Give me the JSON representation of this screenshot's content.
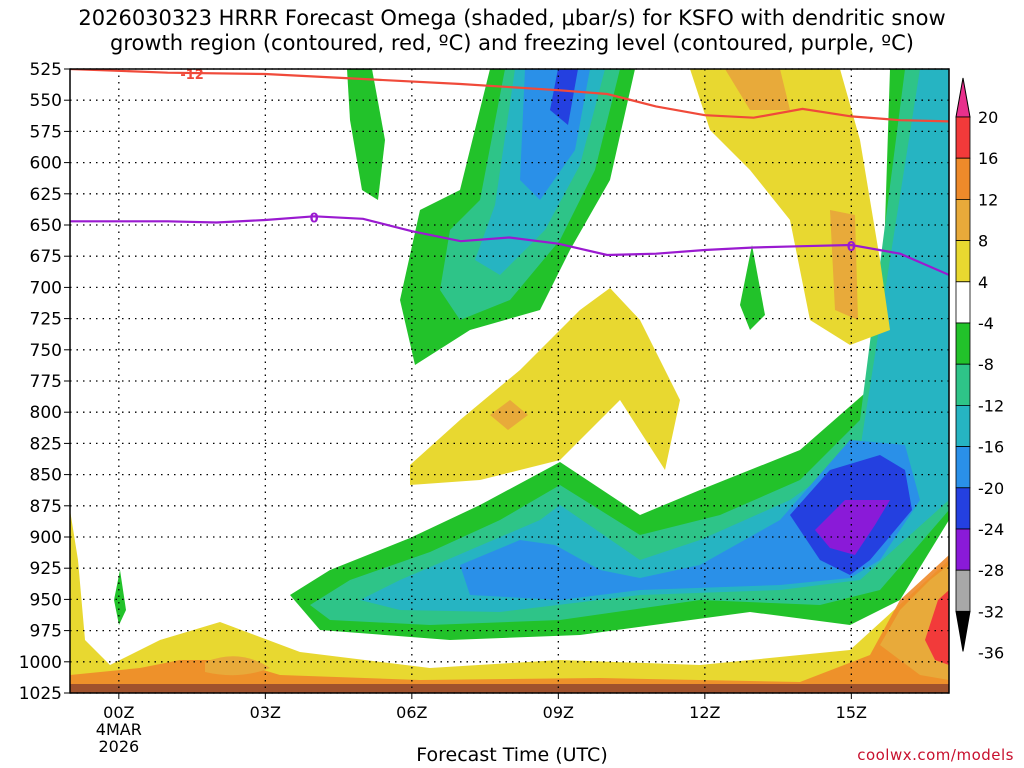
{
  "chart_data": {
    "type": "heatmap",
    "title_line1": "2026030323 HRRR Forecast Omega (shaded, μbar/s) for KSFO with dendritic snow",
    "title_line2": "growth region (contoured, red, ºC) and freezing level (contoured, purple, ºC)",
    "xlabel": "Forecast Time (UTC)",
    "x_hours": [
      0,
      3,
      6,
      9,
      12,
      15
    ],
    "x_tick_labels": [
      "00Z",
      "03Z",
      "06Z",
      "09Z",
      "12Z",
      "15Z"
    ],
    "x_date_label": [
      "4MAR",
      "2026"
    ],
    "xlim": [
      -1,
      17
    ],
    "y_levels": [
      525,
      550,
      575,
      600,
      625,
      650,
      675,
      700,
      725,
      750,
      775,
      800,
      825,
      850,
      875,
      900,
      925,
      950,
      975,
      1000,
      1025
    ],
    "ylim": [
      525,
      1025
    ],
    "grid": true,
    "colorbar_ticks": [
      20,
      16,
      12,
      8,
      4,
      -4,
      -8,
      -12,
      -16,
      -20,
      -24,
      -28,
      -32,
      -36
    ],
    "colorbar_colors": [
      "#e8308c",
      "#f23a3a",
      "#ee8a2a",
      "#e8aa3a",
      "#e8d830",
      "#ffffff",
      "#22c22a",
      "#2ec488",
      "#26b4c2",
      "#2a90e8",
      "#2440e0",
      "#8a1ad8",
      "#a8a8a8"
    ],
    "omega_regions": [
      {
        "name": "Strong ascent 15Z (-24 to -28)",
        "color": "#8a1ad8"
      },
      {
        "name": "Ascent 08-09Z near 550 mb",
        "color": "#2a90e8"
      },
      {
        "name": "Subsidence 16-17Z near 950 mb",
        "color": "#f23a3a"
      }
    ],
    "contours": [
      {
        "name": "dendritic",
        "label": "-12",
        "color": "#f04a3a",
        "points": [
          [
            -1,
            525
          ],
          [
            1,
            528
          ],
          [
            3,
            529
          ],
          [
            5,
            533
          ],
          [
            7,
            537
          ],
          [
            9,
            542
          ],
          [
            10,
            545
          ],
          [
            11,
            555
          ],
          [
            12,
            562
          ],
          [
            13,
            564
          ],
          [
            14,
            557
          ],
          [
            15,
            563
          ],
          [
            16,
            566
          ],
          [
            17,
            567
          ]
        ]
      },
      {
        "name": "freezing",
        "label": "0",
        "color": "#9a1ad0",
        "points": [
          [
            -1,
            647
          ],
          [
            0,
            647
          ],
          [
            1,
            647
          ],
          [
            2,
            648
          ],
          [
            3,
            646
          ],
          [
            4,
            643
          ],
          [
            5,
            645
          ],
          [
            6,
            655
          ],
          [
            7,
            663
          ],
          [
            8,
            660
          ],
          [
            9,
            665
          ],
          [
            10,
            674
          ],
          [
            11,
            673
          ],
          [
            12,
            670
          ],
          [
            13,
            668
          ],
          [
            14,
            667
          ],
          [
            15,
            666
          ],
          [
            16,
            673
          ],
          [
            17,
            690
          ]
        ]
      }
    ],
    "legend": "colorbar-right"
  },
  "credit": "coolwx.com/models"
}
